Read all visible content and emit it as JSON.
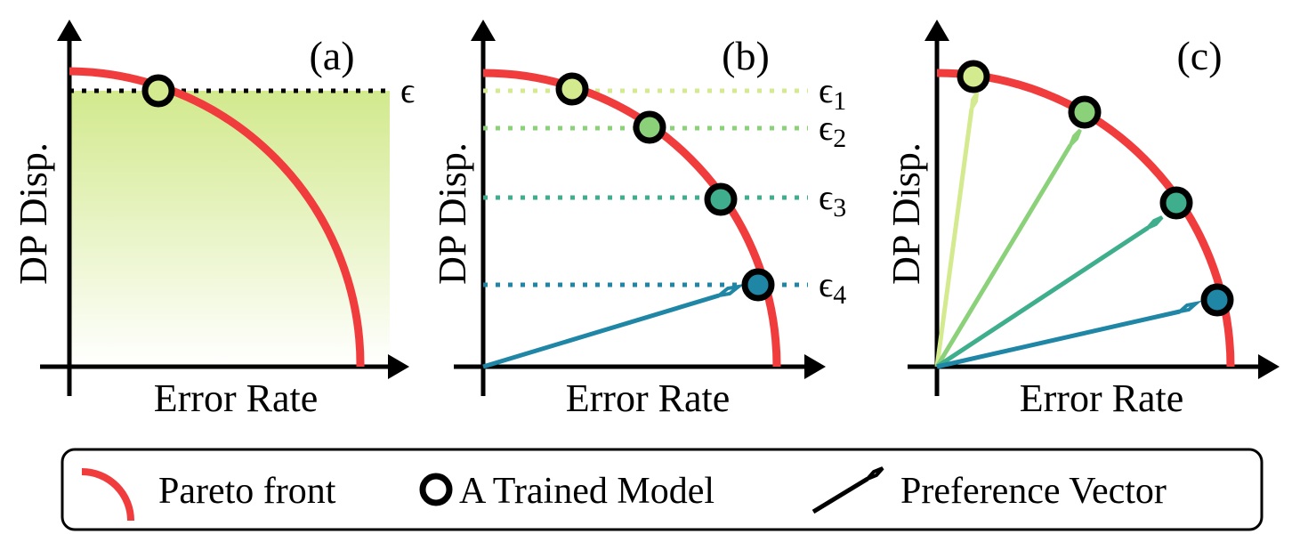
{
  "colors": {
    "pareto": "#f03c3c",
    "pref_1": "#d4ea8e",
    "pref_2": "#8ad17a",
    "pref_3": "#3fae8c",
    "pref_4": "#1f86a6",
    "fill_top": "#d2e98d"
  },
  "panels": [
    {
      "tag": "(a)",
      "xlabel": "Error Rate",
      "ylabel": "DP Disp.",
      "epsilons": [
        "ϵ"
      ]
    },
    {
      "tag": "(b)",
      "xlabel": "Error Rate",
      "ylabel": "DP Disp.",
      "epsilons": [
        "ϵ",
        "ϵ",
        "ϵ",
        "ϵ"
      ],
      "epsilon_subscripts": [
        "1",
        "2",
        "3",
        "4"
      ]
    },
    {
      "tag": "(c)",
      "xlabel": "Error Rate",
      "ylabel": "DP Disp."
    }
  ],
  "legend": {
    "pareto": "Pareto front",
    "model": "A Trained Model",
    "preference": "Preference Vector"
  }
}
